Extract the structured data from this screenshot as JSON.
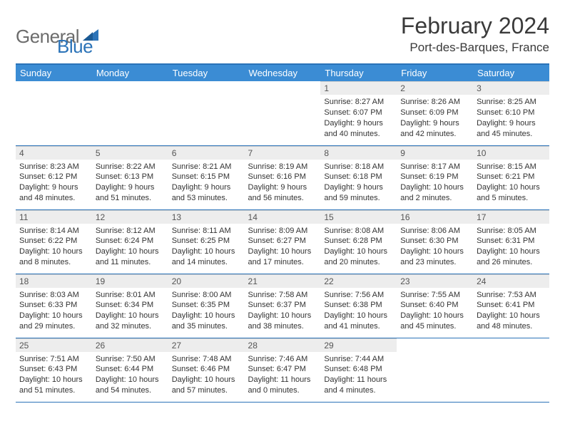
{
  "brand": {
    "part1": "General",
    "part2": "Blue"
  },
  "title": "February 2024",
  "location": "Port-des-Barques, France",
  "dayNames": [
    "Sunday",
    "Monday",
    "Tuesday",
    "Wednesday",
    "Thursday",
    "Friday",
    "Saturday"
  ],
  "colors": {
    "header_bg": "#3b8cd4",
    "accent": "#2b73b8",
    "daynum_bg": "#ededed",
    "text": "#333333"
  },
  "weeks": [
    [
      null,
      null,
      null,
      null,
      {
        "n": "1",
        "sr": "8:27 AM",
        "ss": "6:07 PM",
        "dl": "9 hours and 40 minutes."
      },
      {
        "n": "2",
        "sr": "8:26 AM",
        "ss": "6:09 PM",
        "dl": "9 hours and 42 minutes."
      },
      {
        "n": "3",
        "sr": "8:25 AM",
        "ss": "6:10 PM",
        "dl": "9 hours and 45 minutes."
      }
    ],
    [
      {
        "n": "4",
        "sr": "8:23 AM",
        "ss": "6:12 PM",
        "dl": "9 hours and 48 minutes."
      },
      {
        "n": "5",
        "sr": "8:22 AM",
        "ss": "6:13 PM",
        "dl": "9 hours and 51 minutes."
      },
      {
        "n": "6",
        "sr": "8:21 AM",
        "ss": "6:15 PM",
        "dl": "9 hours and 53 minutes."
      },
      {
        "n": "7",
        "sr": "8:19 AM",
        "ss": "6:16 PM",
        "dl": "9 hours and 56 minutes."
      },
      {
        "n": "8",
        "sr": "8:18 AM",
        "ss": "6:18 PM",
        "dl": "9 hours and 59 minutes."
      },
      {
        "n": "9",
        "sr": "8:17 AM",
        "ss": "6:19 PM",
        "dl": "10 hours and 2 minutes."
      },
      {
        "n": "10",
        "sr": "8:15 AM",
        "ss": "6:21 PM",
        "dl": "10 hours and 5 minutes."
      }
    ],
    [
      {
        "n": "11",
        "sr": "8:14 AM",
        "ss": "6:22 PM",
        "dl": "10 hours and 8 minutes."
      },
      {
        "n": "12",
        "sr": "8:12 AM",
        "ss": "6:24 PM",
        "dl": "10 hours and 11 minutes."
      },
      {
        "n": "13",
        "sr": "8:11 AM",
        "ss": "6:25 PM",
        "dl": "10 hours and 14 minutes."
      },
      {
        "n": "14",
        "sr": "8:09 AM",
        "ss": "6:27 PM",
        "dl": "10 hours and 17 minutes."
      },
      {
        "n": "15",
        "sr": "8:08 AM",
        "ss": "6:28 PM",
        "dl": "10 hours and 20 minutes."
      },
      {
        "n": "16",
        "sr": "8:06 AM",
        "ss": "6:30 PM",
        "dl": "10 hours and 23 minutes."
      },
      {
        "n": "17",
        "sr": "8:05 AM",
        "ss": "6:31 PM",
        "dl": "10 hours and 26 minutes."
      }
    ],
    [
      {
        "n": "18",
        "sr": "8:03 AM",
        "ss": "6:33 PM",
        "dl": "10 hours and 29 minutes."
      },
      {
        "n": "19",
        "sr": "8:01 AM",
        "ss": "6:34 PM",
        "dl": "10 hours and 32 minutes."
      },
      {
        "n": "20",
        "sr": "8:00 AM",
        "ss": "6:35 PM",
        "dl": "10 hours and 35 minutes."
      },
      {
        "n": "21",
        "sr": "7:58 AM",
        "ss": "6:37 PM",
        "dl": "10 hours and 38 minutes."
      },
      {
        "n": "22",
        "sr": "7:56 AM",
        "ss": "6:38 PM",
        "dl": "10 hours and 41 minutes."
      },
      {
        "n": "23",
        "sr": "7:55 AM",
        "ss": "6:40 PM",
        "dl": "10 hours and 45 minutes."
      },
      {
        "n": "24",
        "sr": "7:53 AM",
        "ss": "6:41 PM",
        "dl": "10 hours and 48 minutes."
      }
    ],
    [
      {
        "n": "25",
        "sr": "7:51 AM",
        "ss": "6:43 PM",
        "dl": "10 hours and 51 minutes."
      },
      {
        "n": "26",
        "sr": "7:50 AM",
        "ss": "6:44 PM",
        "dl": "10 hours and 54 minutes."
      },
      {
        "n": "27",
        "sr": "7:48 AM",
        "ss": "6:46 PM",
        "dl": "10 hours and 57 minutes."
      },
      {
        "n": "28",
        "sr": "7:46 AM",
        "ss": "6:47 PM",
        "dl": "11 hours and 0 minutes."
      },
      {
        "n": "29",
        "sr": "7:44 AM",
        "ss": "6:48 PM",
        "dl": "11 hours and 4 minutes."
      },
      null,
      null
    ]
  ],
  "labels": {
    "sunrise": "Sunrise:",
    "sunset": "Sunset:",
    "daylight": "Daylight:"
  }
}
